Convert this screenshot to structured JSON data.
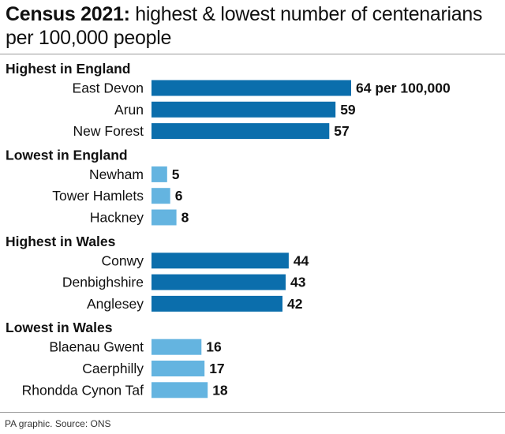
{
  "title": {
    "bold": "Census 2021:",
    "rest": " highest & lowest number of centenarians per 100,000 people"
  },
  "source": "PA graphic. Source: ONS",
  "colors": {
    "highest": "#0b6eac",
    "lowest": "#64b4e0",
    "text": "#111111",
    "rule": "#9a9a9a"
  },
  "chart_data": {
    "type": "bar",
    "orientation": "horizontal",
    "unit_label": "per 100,000",
    "xlim": [
      0,
      100
    ],
    "groups": [
      {
        "heading": "Highest in England",
        "style": "highest",
        "items": [
          {
            "label": "East Devon",
            "value": 64,
            "value_label": "64 per 100,000"
          },
          {
            "label": "Arun",
            "value": 59,
            "value_label": "59"
          },
          {
            "label": "New Forest",
            "value": 57,
            "value_label": "57"
          }
        ]
      },
      {
        "heading": "Lowest in England",
        "style": "lowest",
        "items": [
          {
            "label": "Newham",
            "value": 5,
            "value_label": "5"
          },
          {
            "label": "Tower Hamlets",
            "value": 6,
            "value_label": "6"
          },
          {
            "label": "Hackney",
            "value": 8,
            "value_label": "8"
          }
        ]
      },
      {
        "heading": "Highest in Wales",
        "style": "highest",
        "items": [
          {
            "label": "Conwy",
            "value": 44,
            "value_label": "44"
          },
          {
            "label": "Denbighshire",
            "value": 43,
            "value_label": "43"
          },
          {
            "label": "Anglesey",
            "value": 42,
            "value_label": "42"
          }
        ]
      },
      {
        "heading": "Lowest in Wales",
        "style": "lowest",
        "items": [
          {
            "label": "Blaenau Gwent",
            "value": 16,
            "value_label": "16"
          },
          {
            "label": "Caerphilly",
            "value": 17,
            "value_label": "17"
          },
          {
            "label": "Rhondda Cynon Taf",
            "value": 18,
            "value_label": "18"
          }
        ]
      }
    ]
  }
}
